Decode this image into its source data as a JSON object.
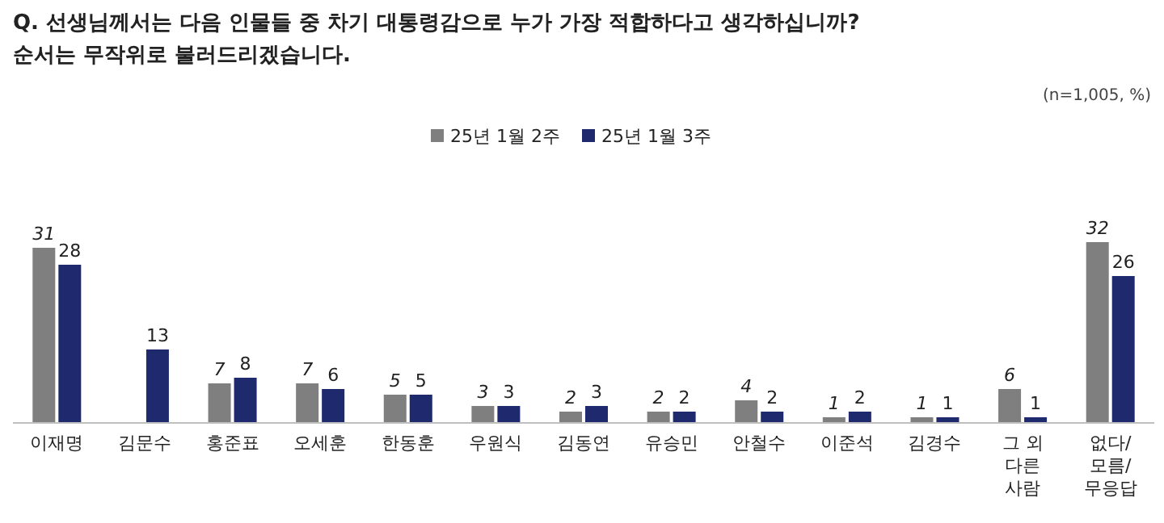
{
  "chart_data": {
    "type": "bar",
    "title": "Q. 선생님께서는 다음 인물들 중 차기 대통령감으로 누가 가장 적합하다고 생각하십니까?",
    "subtitle": "순서는 무작위로 불러드리겠습니다.",
    "annotations": [
      "(n=1,005, %)"
    ],
    "categories": [
      "이재명",
      "김문수",
      "홍준표",
      "오세훈",
      "한동훈",
      "우원식",
      "김동연",
      "유승민",
      "안철수",
      "이준석",
      "김경수",
      "그 외 다른 사람",
      "없다/ 모름/ 무응답"
    ],
    "series": [
      {
        "name": "25년 1월 2주",
        "color": "#7f7f7f",
        "values": [
          31,
          null,
          7,
          7,
          5,
          3,
          2,
          2,
          4,
          1,
          1,
          6,
          32
        ]
      },
      {
        "name": "25년 1월 3주",
        "color": "#1f2a6e",
        "values": [
          28,
          13,
          8,
          6,
          5,
          3,
          3,
          2,
          2,
          2,
          1,
          1,
          26
        ]
      }
    ],
    "relative": false,
    "data_labels": true,
    "legend": "top"
  }
}
